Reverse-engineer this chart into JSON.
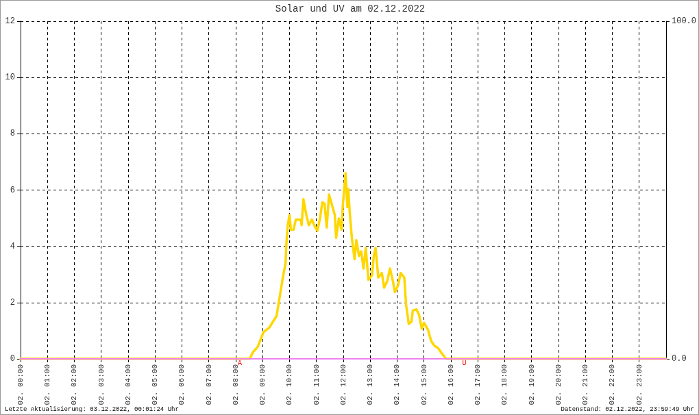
{
  "chart_data": {
    "type": "line",
    "title": "Solar und UV am 02.12.2022",
    "xlim": [
      "2022-12-02T00:00",
      "2022-12-03T00:00"
    ],
    "xticks": [
      {
        "value": "2022-12-02T00:00",
        "label": "02. 00:00"
      },
      {
        "value": "2022-12-02T01:00",
        "label": "02. 01:00"
      },
      {
        "value": "2022-12-02T02:00",
        "label": "02. 02:00"
      },
      {
        "value": "2022-12-02T03:00",
        "label": "02. 03:00"
      },
      {
        "value": "2022-12-02T04:00",
        "label": "02. 04:00"
      },
      {
        "value": "2022-12-02T05:00",
        "label": "02. 05:00"
      },
      {
        "value": "2022-12-02T06:00",
        "label": "02. 06:00"
      },
      {
        "value": "2022-12-02T07:00",
        "label": "02. 07:00"
      },
      {
        "value": "2022-12-02T08:00",
        "label": "02. 08:00"
      },
      {
        "value": "2022-12-02T09:00",
        "label": "02. 09:00"
      },
      {
        "value": "2022-12-02T10:00",
        "label": "02. 10:00"
      },
      {
        "value": "2022-12-02T11:00",
        "label": "02. 11:00"
      },
      {
        "value": "2022-12-02T12:00",
        "label": "02. 12:00"
      },
      {
        "value": "2022-12-02T13:00",
        "label": "02. 13:00"
      },
      {
        "value": "2022-12-02T14:00",
        "label": "02. 14:00"
      },
      {
        "value": "2022-12-02T15:00",
        "label": "02. 15:00"
      },
      {
        "value": "2022-12-02T16:00",
        "label": "02. 16:00"
      },
      {
        "value": "2022-12-02T17:00",
        "label": "02. 17:00"
      },
      {
        "value": "2022-12-02T18:00",
        "label": "02. 18:00"
      },
      {
        "value": "2022-12-02T19:00",
        "label": "02. 19:00"
      },
      {
        "value": "2022-12-02T20:00",
        "label": "02. 20:00"
      },
      {
        "value": "2022-12-02T21:00",
        "label": "02. 21:00"
      },
      {
        "value": "2022-12-02T22:00",
        "label": "02. 22:00"
      },
      {
        "value": "2022-12-02T23:00",
        "label": "02. 23:00"
      }
    ],
    "ylim": [
      0,
      12
    ],
    "yticks": [
      0,
      2,
      4,
      6,
      8,
      10,
      12
    ],
    "y2lim": [
      0,
      100
    ],
    "y2ticks": [
      {
        "value": 0,
        "label": "0.0"
      },
      {
        "value": 100,
        "label": "100.0"
      }
    ],
    "grid": true,
    "line_style": "solid",
    "series": [
      {
        "color": "#ee82ee",
        "axis": "y2",
        "x": [
          "2022-12-02T00:00",
          "2022-12-03T00:00"
        ],
        "values": [
          0,
          0
        ]
      },
      {
        "color": "#ffd700",
        "x": [
          "2022-12-02T00:00",
          "2022-12-02T08:30",
          "2022-12-02T08:33",
          "2022-12-02T08:38",
          "2022-12-02T08:49",
          "2022-12-02T08:56",
          "2022-12-02T09:02",
          "2022-12-02T09:15",
          "2022-12-02T09:23",
          "2022-12-02T09:31",
          "2022-12-02T09:36",
          "2022-12-02T09:41",
          "2022-12-02T09:46",
          "2022-12-02T09:51",
          "2022-12-02T09:53",
          "2022-12-02T09:56",
          "2022-12-02T10:00",
          "2022-12-02T10:03",
          "2022-12-02T10:09",
          "2022-12-02T10:14",
          "2022-12-02T10:25",
          "2022-12-02T10:27",
          "2022-12-02T10:31",
          "2022-12-02T10:37",
          "2022-12-02T10:43",
          "2022-12-02T10:50",
          "2022-12-02T10:55",
          "2022-12-02T11:02",
          "2022-12-02T11:08",
          "2022-12-02T11:13",
          "2022-12-02T11:18",
          "2022-12-02T11:23",
          "2022-12-02T11:28",
          "2022-12-02T11:33",
          "2022-12-02T11:41",
          "2022-12-02T11:44",
          "2022-12-02T11:50",
          "2022-12-02T11:56",
          "2022-12-02T11:59",
          "2022-12-02T12:05",
          "2022-12-02T12:09",
          "2022-12-02T12:11",
          "2022-12-02T12:14",
          "2022-12-02T12:19",
          "2022-12-02T12:25",
          "2022-12-02T12:29",
          "2022-12-02T12:35",
          "2022-12-02T12:40",
          "2022-12-02T12:45",
          "2022-12-02T12:50",
          "2022-12-02T12:56",
          "2022-12-02T13:04",
          "2022-12-02T13:08",
          "2022-12-02T13:12",
          "2022-12-02T13:18",
          "2022-12-02T13:26",
          "2022-12-02T13:31",
          "2022-12-02T13:38",
          "2022-12-02T13:44",
          "2022-12-02T13:50",
          "2022-12-02T13:55",
          "2022-12-02T14:02",
          "2022-12-02T14:08",
          "2022-12-02T14:16",
          "2022-12-02T14:20",
          "2022-12-02T14:26",
          "2022-12-02T14:32",
          "2022-12-02T14:35",
          "2022-12-02T14:43",
          "2022-12-02T14:49",
          "2022-12-02T14:55",
          "2022-12-02T15:00",
          "2022-12-02T15:09",
          "2022-12-02T15:16",
          "2022-12-02T15:23",
          "2022-12-02T15:31",
          "2022-12-02T15:38",
          "2022-12-02T15:46",
          "2022-12-02T15:49",
          "2022-12-03T00:00"
        ],
        "values": [
          0,
          0,
          0.05,
          0.23,
          0.43,
          0.71,
          0.95,
          1.11,
          1.32,
          1.52,
          2.0,
          2.49,
          2.97,
          3.38,
          4.1,
          4.75,
          5.11,
          4.59,
          4.59,
          4.95,
          4.95,
          4.75,
          5.68,
          5.15,
          4.75,
          4.95,
          4.75,
          4.55,
          4.99,
          5.56,
          5.52,
          4.67,
          5.84,
          5.56,
          5.11,
          4.3,
          4.99,
          4.59,
          5.48,
          6.6,
          5.4,
          6.04,
          5.27,
          4.3,
          3.54,
          4.22,
          3.66,
          3.82,
          3.21,
          3.94,
          2.81,
          2.97,
          3.66,
          3.94,
          2.89,
          3.05,
          2.53,
          2.77,
          3.21,
          2.81,
          2.37,
          2.61,
          3.05,
          2.89,
          1.92,
          1.24,
          1.32,
          1.72,
          1.76,
          1.56,
          1.07,
          1.28,
          1.03,
          0.63,
          0.47,
          0.39,
          0.23,
          0.06,
          0,
          0
        ]
      }
    ],
    "annotations": [
      {
        "text": "A",
        "x": "2022-12-02T08:09",
        "y": 0
      },
      {
        "text": "U",
        "x": "2022-12-02T16:30",
        "y": 0
      },
      "Letzte Aktualisierung: 03.12.2022, 00:01:24 Uhr",
      "Datenstand: 02.12.2022, 23:59:49 Uhr"
    ]
  }
}
